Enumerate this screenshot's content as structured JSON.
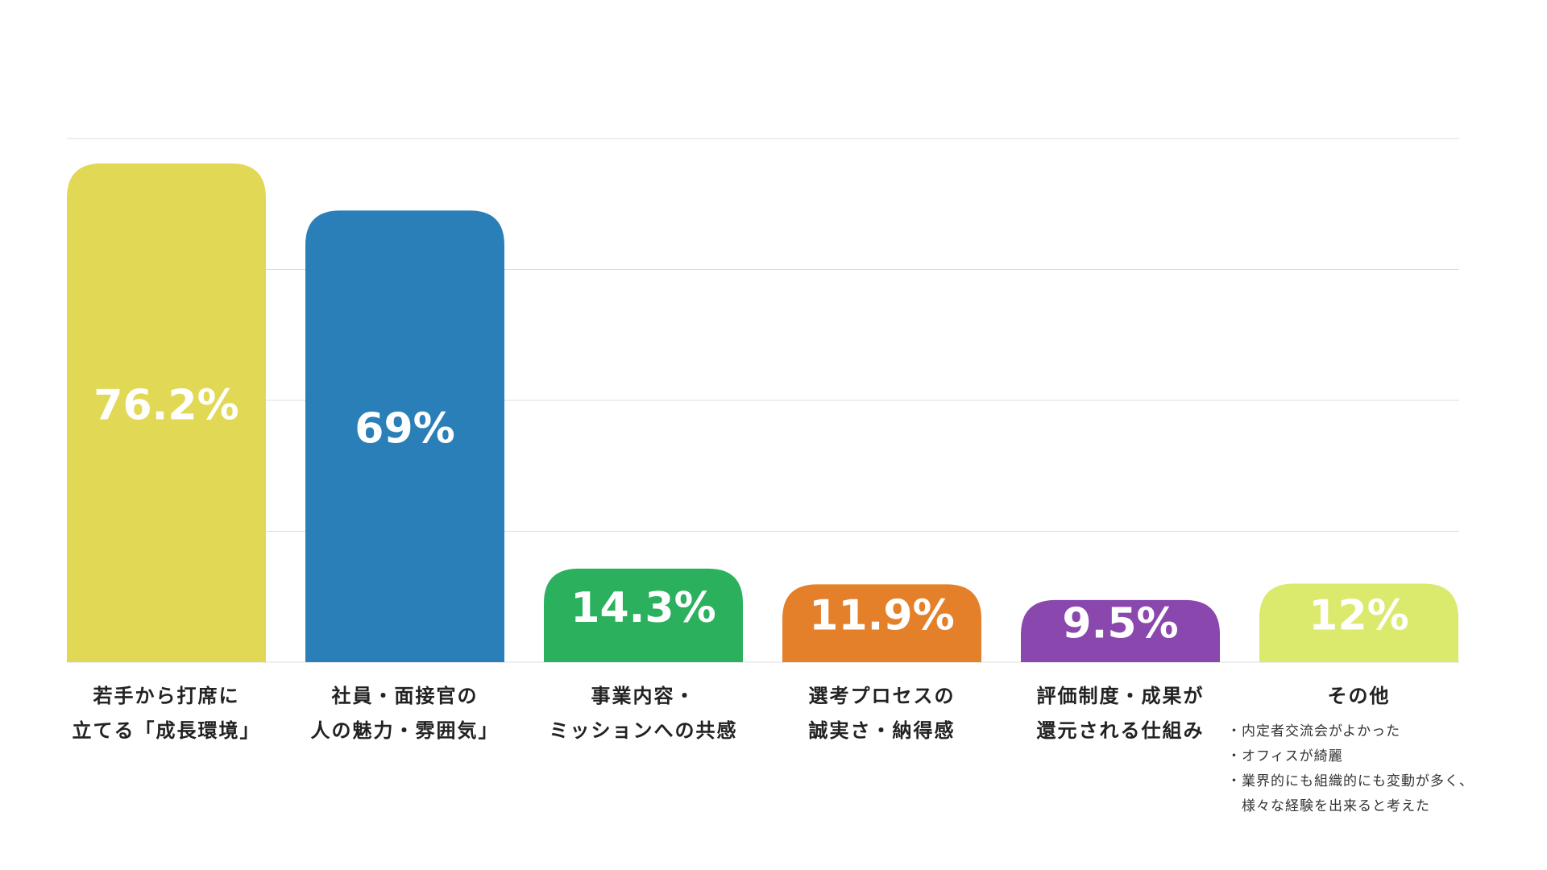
{
  "chart_data": {
    "type": "bar",
    "categories": [
      "若手から打席に\n立てる「成長環境」",
      "社員・面接官の\n人の魅力・雰囲気」",
      "事業内容・\nミッションへの共感",
      "選考プロセスの\n誠実さ・納得感",
      "評価制度・成果が\n還元される仕組み",
      "その他"
    ],
    "values": [
      76.2,
      69,
      14.3,
      11.9,
      9.5,
      12
    ],
    "value_labels": [
      "76.2%",
      "69%",
      "14.3%",
      "11.9%",
      "9.5%",
      "12%"
    ],
    "colors": [
      "#e1d955",
      "#2a7fb8",
      "#2bb05e",
      "#e5802a",
      "#8a47ad",
      "#dbe96c"
    ],
    "notes": [
      "・内定者交流会がよかった",
      "・オフィスが綺麗",
      "・業界的にも組織的にも変動が多く、\n　様々な経験を出来ると考えた"
    ],
    "ylim": [
      0,
      80
    ],
    "yticks": [
      0,
      20,
      40,
      60,
      80
    ],
    "grid": true
  }
}
